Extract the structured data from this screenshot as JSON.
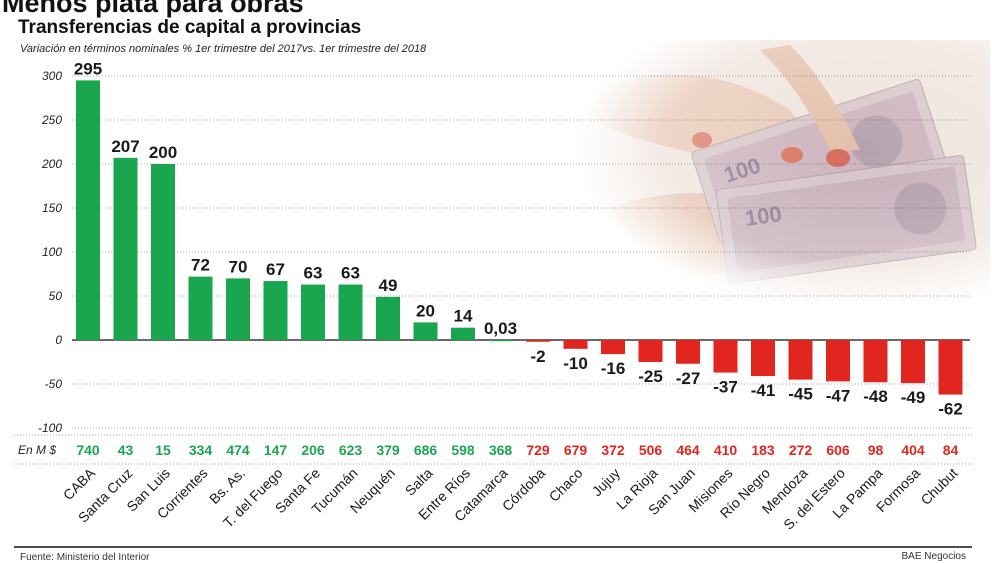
{
  "header": {
    "title": "Menos plata para obras",
    "subtitle": "Transferencias de capital a provincias",
    "note": "Variación en términos nominales % 1er trimestre del 2017vs. 1er trimestre del 2018"
  },
  "footer": {
    "source": "Fuente: Ministerio del Interior",
    "credit": "BAE Negocios"
  },
  "colors": {
    "positive": "#1aa64f",
    "negative": "#e0261e",
    "grid": "#555555"
  },
  "chart_data": {
    "type": "bar",
    "ylim": [
      -100,
      300
    ],
    "yticks": [
      300,
      250,
      200,
      150,
      100,
      50,
      0,
      -50,
      -100
    ],
    "grid": true,
    "row_label": "En M $",
    "categories": [
      "CABA",
      "Santa Cruz",
      "San Luis",
      "Corrientes",
      "Bs. As.",
      "T. del Fuego",
      "Santa Fe",
      "Tucumán",
      "Neuquén",
      "Salta",
      "Entre Ríos",
      "Catamarca",
      "Córdoba",
      "Chaco",
      "Jujuy",
      "La Rioja",
      "San Juan",
      "Misiones",
      "Río Negro",
      "Mendoza",
      "S. del Estero",
      "La Pampa",
      "Formosa",
      "Chubut"
    ],
    "values": [
      295,
      207,
      200,
      72,
      70,
      67,
      63,
      63,
      49,
      20,
      14,
      0.03,
      -2,
      -10,
      -16,
      -25,
      -27,
      -37,
      -41,
      -45,
      -47,
      -48,
      -49,
      -62
    ],
    "value_labels": [
      "295",
      "207",
      "200",
      "72",
      "70",
      "67",
      "63",
      "63",
      "49",
      "20",
      "14",
      "0,03",
      "-2",
      "-10",
      "-16",
      "-25",
      "-27",
      "-37",
      "-41",
      "-45",
      "-47",
      "-48",
      "-49",
      "-62"
    ],
    "amounts": [
      740,
      43,
      15,
      334,
      474,
      147,
      206,
      623,
      379,
      686,
      598,
      368,
      729,
      679,
      372,
      506,
      464,
      410,
      183,
      272,
      606,
      98,
      404,
      84
    ]
  }
}
